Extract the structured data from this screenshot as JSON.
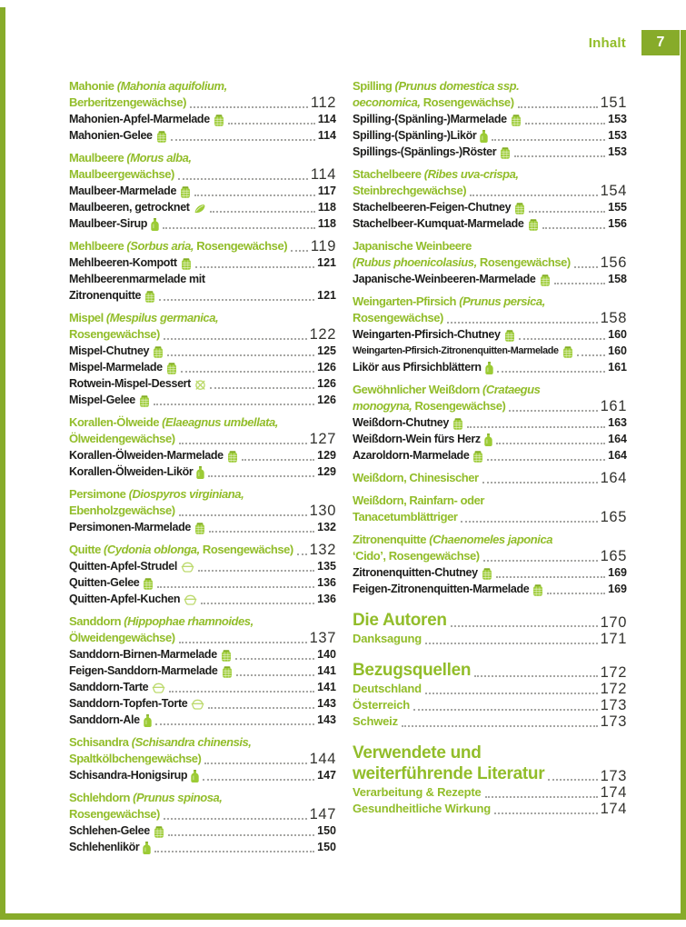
{
  "page": {
    "header_label": "Inhalt",
    "number": "7"
  },
  "colors": {
    "accent_green": "#92bd2a",
    "page_number_box_green": "#87ab2a",
    "text_black": "#1d1d1b",
    "leader_dots": "#a6a6a3",
    "icon_green": "#9ccb35",
    "icon_green_dark": "#83ad24",
    "icon_green_light": "#bdda6e"
  },
  "toc": {
    "columns": [
      {
        "side": "left",
        "items": [
          {
            "type": "section",
            "page": "112",
            "lines": [
              [
                {
                  "t": "Mahonie ",
                  "i": false
                },
                {
                  "t": "(Mahonia aquifolium,",
                  "i": true
                }
              ],
              [
                {
                  "t": "Berberitzengewächse)",
                  "i": false
                }
              ]
            ]
          },
          {
            "type": "recipe",
            "label": "Mahonien-Apfel-Marmelade",
            "icon": "jar",
            "page": "114"
          },
          {
            "type": "recipe",
            "label": "Mahonien-Gelee",
            "icon": "jar",
            "page": "114"
          },
          {
            "type": "section",
            "page": "114",
            "lines": [
              [
                {
                  "t": "Maulbeere ",
                  "i": false
                },
                {
                  "t": "(Morus alba,",
                  "i": true
                }
              ],
              [
                {
                  "t": "Maulbeergewächse)",
                  "i": false
                }
              ]
            ]
          },
          {
            "type": "recipe",
            "label": "Maulbeer-Marmelade",
            "icon": "jar",
            "page": "117"
          },
          {
            "type": "recipe",
            "label": "Maulbeeren, getrocknet",
            "icon": "dried",
            "page": "118"
          },
          {
            "type": "recipe",
            "label": "Maulbeer-Sirup",
            "icon": "bottle",
            "page": "118"
          },
          {
            "type": "section",
            "page": "119",
            "lines": [
              [
                {
                  "t": "Mehlbeere ",
                  "i": false
                },
                {
                  "t": "(Sorbus aria,",
                  "i": true
                },
                {
                  "t": " Rosengewächse)",
                  "i": false
                }
              ]
            ]
          },
          {
            "type": "recipe",
            "label": "Mehlbeeren-Kompott",
            "icon": "jar",
            "page": "121"
          },
          {
            "type": "recipe",
            "pre": "Mehlbeerenmarmelade mit",
            "label": "Zitronenquitte",
            "icon": "jar",
            "page": "121"
          },
          {
            "type": "section",
            "page": "122",
            "lines": [
              [
                {
                  "t": "Mispel ",
                  "i": false
                },
                {
                  "t": "(Mespilus germanica,",
                  "i": true
                }
              ],
              [
                {
                  "t": "Rosengewächse)",
                  "i": false
                }
              ]
            ]
          },
          {
            "type": "recipe",
            "label": "Mispel-Chutney",
            "icon": "jar",
            "page": "125"
          },
          {
            "type": "recipe",
            "label": "Mispel-Marmelade",
            "icon": "jar",
            "page": "126"
          },
          {
            "type": "recipe",
            "label": "Rotwein-Mispel-Dessert",
            "icon": "dessert",
            "page": "126"
          },
          {
            "type": "recipe",
            "label": "Mispel-Gelee",
            "icon": "jar",
            "page": "126"
          },
          {
            "type": "section",
            "page": "127",
            "lines": [
              [
                {
                  "t": "Korallen-Ölweide ",
                  "i": false
                },
                {
                  "t": "(Elaeagnus umbellata,",
                  "i": true
                }
              ],
              [
                {
                  "t": "Ölweidengewächse)",
                  "i": false
                }
              ]
            ]
          },
          {
            "type": "recipe",
            "label": "Korallen-Ölweiden-Marmelade",
            "icon": "jar",
            "page": "129"
          },
          {
            "type": "recipe",
            "label": "Korallen-Ölweiden-Likör",
            "icon": "bottle",
            "page": "129"
          },
          {
            "type": "section",
            "page": "130",
            "lines": [
              [
                {
                  "t": "Persimone ",
                  "i": false
                },
                {
                  "t": "(Diospyros virginiana,",
                  "i": true
                }
              ],
              [
                {
                  "t": "Ebenholzgewächse)",
                  "i": false
                }
              ]
            ]
          },
          {
            "type": "recipe",
            "label": "Persimonen-Marmelade",
            "icon": "jar",
            "page": "132"
          },
          {
            "type": "section",
            "page": "132",
            "lines": [
              [
                {
                  "t": "Quitte ",
                  "i": false
                },
                {
                  "t": "(Cydonia oblonga,",
                  "i": true
                },
                {
                  "t": " Rosengewächse)",
                  "i": false
                }
              ]
            ]
          },
          {
            "type": "recipe",
            "label": "Quitten-Apfel-Strudel",
            "icon": "cake",
            "page": "135"
          },
          {
            "type": "recipe",
            "label": "Quitten-Gelee",
            "icon": "jar",
            "page": "136"
          },
          {
            "type": "recipe",
            "label": "Quitten-Apfel-Kuchen",
            "icon": "cake",
            "page": "136"
          },
          {
            "type": "section",
            "page": "137",
            "lines": [
              [
                {
                  "t": "Sanddorn ",
                  "i": false
                },
                {
                  "t": "(Hippophae rhamnoides,",
                  "i": true
                }
              ],
              [
                {
                  "t": "Ölweidengewächse)",
                  "i": false
                }
              ]
            ]
          },
          {
            "type": "recipe",
            "label": "Sanddorn-Birnen-Marmelade",
            "icon": "jar",
            "page": "140"
          },
          {
            "type": "recipe",
            "label": "Feigen-Sanddorn-Marmelade",
            "icon": "jar",
            "page": "141"
          },
          {
            "type": "recipe",
            "label": "Sanddorn-Tarte",
            "icon": "cake",
            "page": "141"
          },
          {
            "type": "recipe",
            "label": "Sanddorn-Topfen-Torte",
            "icon": "cake",
            "page": "143"
          },
          {
            "type": "recipe",
            "label": "Sanddorn-Ale",
            "icon": "bottle",
            "page": "143"
          },
          {
            "type": "section",
            "page": "144",
            "lines": [
              [
                {
                  "t": "Schisandra ",
                  "i": false
                },
                {
                  "t": "(Schisandra chinensis,",
                  "i": true
                }
              ],
              [
                {
                  "t": "Spaltkölbchengewächse)",
                  "i": false
                }
              ]
            ]
          },
          {
            "type": "recipe",
            "label": "Schisandra-Honigsirup",
            "icon": "bottle",
            "page": "147"
          },
          {
            "type": "section",
            "page": "147",
            "lines": [
              [
                {
                  "t": "Schlehdorn ",
                  "i": false
                },
                {
                  "t": "(Prunus spinosa,",
                  "i": true
                }
              ],
              [
                {
                  "t": "Rosengewächse)",
                  "i": false
                }
              ]
            ]
          },
          {
            "type": "recipe",
            "label": "Schlehen-Gelee",
            "icon": "jar",
            "page": "150"
          },
          {
            "type": "recipe",
            "label": "Schlehenlikör",
            "icon": "bottle",
            "page": "150"
          }
        ]
      },
      {
        "side": "right",
        "items": [
          {
            "type": "section",
            "page": "151",
            "lines": [
              [
                {
                  "t": "Spilling ",
                  "i": false
                },
                {
                  "t": "(Prunus domestica ssp.",
                  "i": true
                }
              ],
              [
                {
                  "t": "oeconomica,",
                  "i": true
                },
                {
                  "t": " Rosengewächse)",
                  "i": false
                }
              ]
            ]
          },
          {
            "type": "recipe",
            "label": "Spilling-(Spänling-)Marmelade",
            "icon": "jar",
            "page": "153"
          },
          {
            "type": "recipe",
            "label": "Spilling-(Spänling-)Likör",
            "icon": "bottle",
            "page": "153"
          },
          {
            "type": "recipe",
            "label": "Spillings-(Spänlings-)Röster",
            "icon": "jar",
            "page": "153"
          },
          {
            "type": "section",
            "page": "154",
            "lines": [
              [
                {
                  "t": "Stachelbeere ",
                  "i": false
                },
                {
                  "t": "(Ribes uva-crispa,",
                  "i": true
                }
              ],
              [
                {
                  "t": "Steinbrechgewächse)",
                  "i": false
                }
              ]
            ]
          },
          {
            "type": "recipe",
            "label": "Stachelbeeren-Feigen-Chutney",
            "icon": "jar",
            "page": "155"
          },
          {
            "type": "recipe",
            "label": "Stachelbeer-Kumquat-Marmelade",
            "icon": "jar",
            "page": "156"
          },
          {
            "type": "section",
            "page": "156",
            "lines": [
              [
                {
                  "t": "Japanische Weinbeere",
                  "i": false
                }
              ],
              [
                {
                  "t": "(Rubus phoenicolasius,",
                  "i": true
                },
                {
                  "t": " Rosengewächse)",
                  "i": false
                }
              ]
            ]
          },
          {
            "type": "recipe",
            "label": "Japanische-Weinbeeren-Marmelade",
            "icon": "jar",
            "page": "158"
          },
          {
            "type": "section",
            "page": "158",
            "lines": [
              [
                {
                  "t": "Weingarten-Pfirsich ",
                  "i": false
                },
                {
                  "t": "(Prunus persica,",
                  "i": true
                }
              ],
              [
                {
                  "t": "Rosengewächse)",
                  "i": false
                }
              ]
            ]
          },
          {
            "type": "recipe",
            "label": "Weingarten-Pfirsich-Chutney",
            "icon": "jar",
            "page": "160"
          },
          {
            "type": "recipe",
            "label": "Weingarten-Pfirsich-Zitronenquitten-Marmelade",
            "icon": "jar",
            "page": "160"
          },
          {
            "type": "recipe",
            "label": "Likör aus Pfirsichblättern",
            "icon": "bottle",
            "page": "161"
          },
          {
            "type": "section",
            "page": "161",
            "lines": [
              [
                {
                  "t": "Gewöhnlicher Weißdorn ",
                  "i": false
                },
                {
                  "t": "(Crataegus",
                  "i": true
                }
              ],
              [
                {
                  "t": "monogyna,",
                  "i": true
                },
                {
                  "t": " Rosengewächse)",
                  "i": false
                }
              ]
            ]
          },
          {
            "type": "recipe",
            "label": "Weißdorn-Chutney",
            "icon": "jar",
            "page": "163"
          },
          {
            "type": "recipe",
            "label": "Weißdorn-Wein fürs Herz",
            "icon": "bottle",
            "page": "164"
          },
          {
            "type": "recipe",
            "label": "Azaroldorn-Marmelade",
            "icon": "jar",
            "page": "164"
          },
          {
            "type": "section",
            "page": "164",
            "lines": [
              [
                {
                  "t": "Weißdorn, Chinesischer",
                  "i": false
                }
              ]
            ]
          },
          {
            "type": "section",
            "page": "165",
            "lines": [
              [
                {
                  "t": "Weißdorn, Rainfarn- oder",
                  "i": false
                }
              ],
              [
                {
                  "t": "Tanacetumblättriger",
                  "i": false
                }
              ]
            ]
          },
          {
            "type": "section",
            "page": "165",
            "lines": [
              [
                {
                  "t": "Zitronenquitte ",
                  "i": false
                },
                {
                  "t": "(Chaenomeles japonica",
                  "i": true
                }
              ],
              [
                {
                  "t": "‘Cido’, Rosengewächse)",
                  "i": false
                }
              ]
            ]
          },
          {
            "type": "recipe",
            "label": "Zitronenquitten-Chutney",
            "icon": "jar",
            "page": "169"
          },
          {
            "type": "recipe",
            "label": "Feigen-Zitronenquitten-Marmelade",
            "icon": "jar",
            "page": "169"
          },
          {
            "type": "big",
            "lines": [
              "Die Autoren"
            ],
            "page": "170"
          },
          {
            "type": "gitem",
            "label": "Danksagung",
            "page": "171"
          },
          {
            "type": "big",
            "lines": [
              "Bezugsquellen"
            ],
            "page": "172"
          },
          {
            "type": "gitem",
            "label": "Deutschland",
            "page": "172"
          },
          {
            "type": "gitem",
            "label": "Österreich",
            "page": "173"
          },
          {
            "type": "gitem",
            "label": "Schweiz",
            "page": "173"
          },
          {
            "type": "big",
            "lines": [
              "Verwendete und",
              "weiterführende Literatur"
            ],
            "page": "173"
          },
          {
            "type": "gitem",
            "label": "Verarbeitung & Rezepte",
            "page": "174"
          },
          {
            "type": "gitem",
            "label": "Gesundheitliche Wirkung",
            "page": "174"
          }
        ]
      }
    ]
  }
}
